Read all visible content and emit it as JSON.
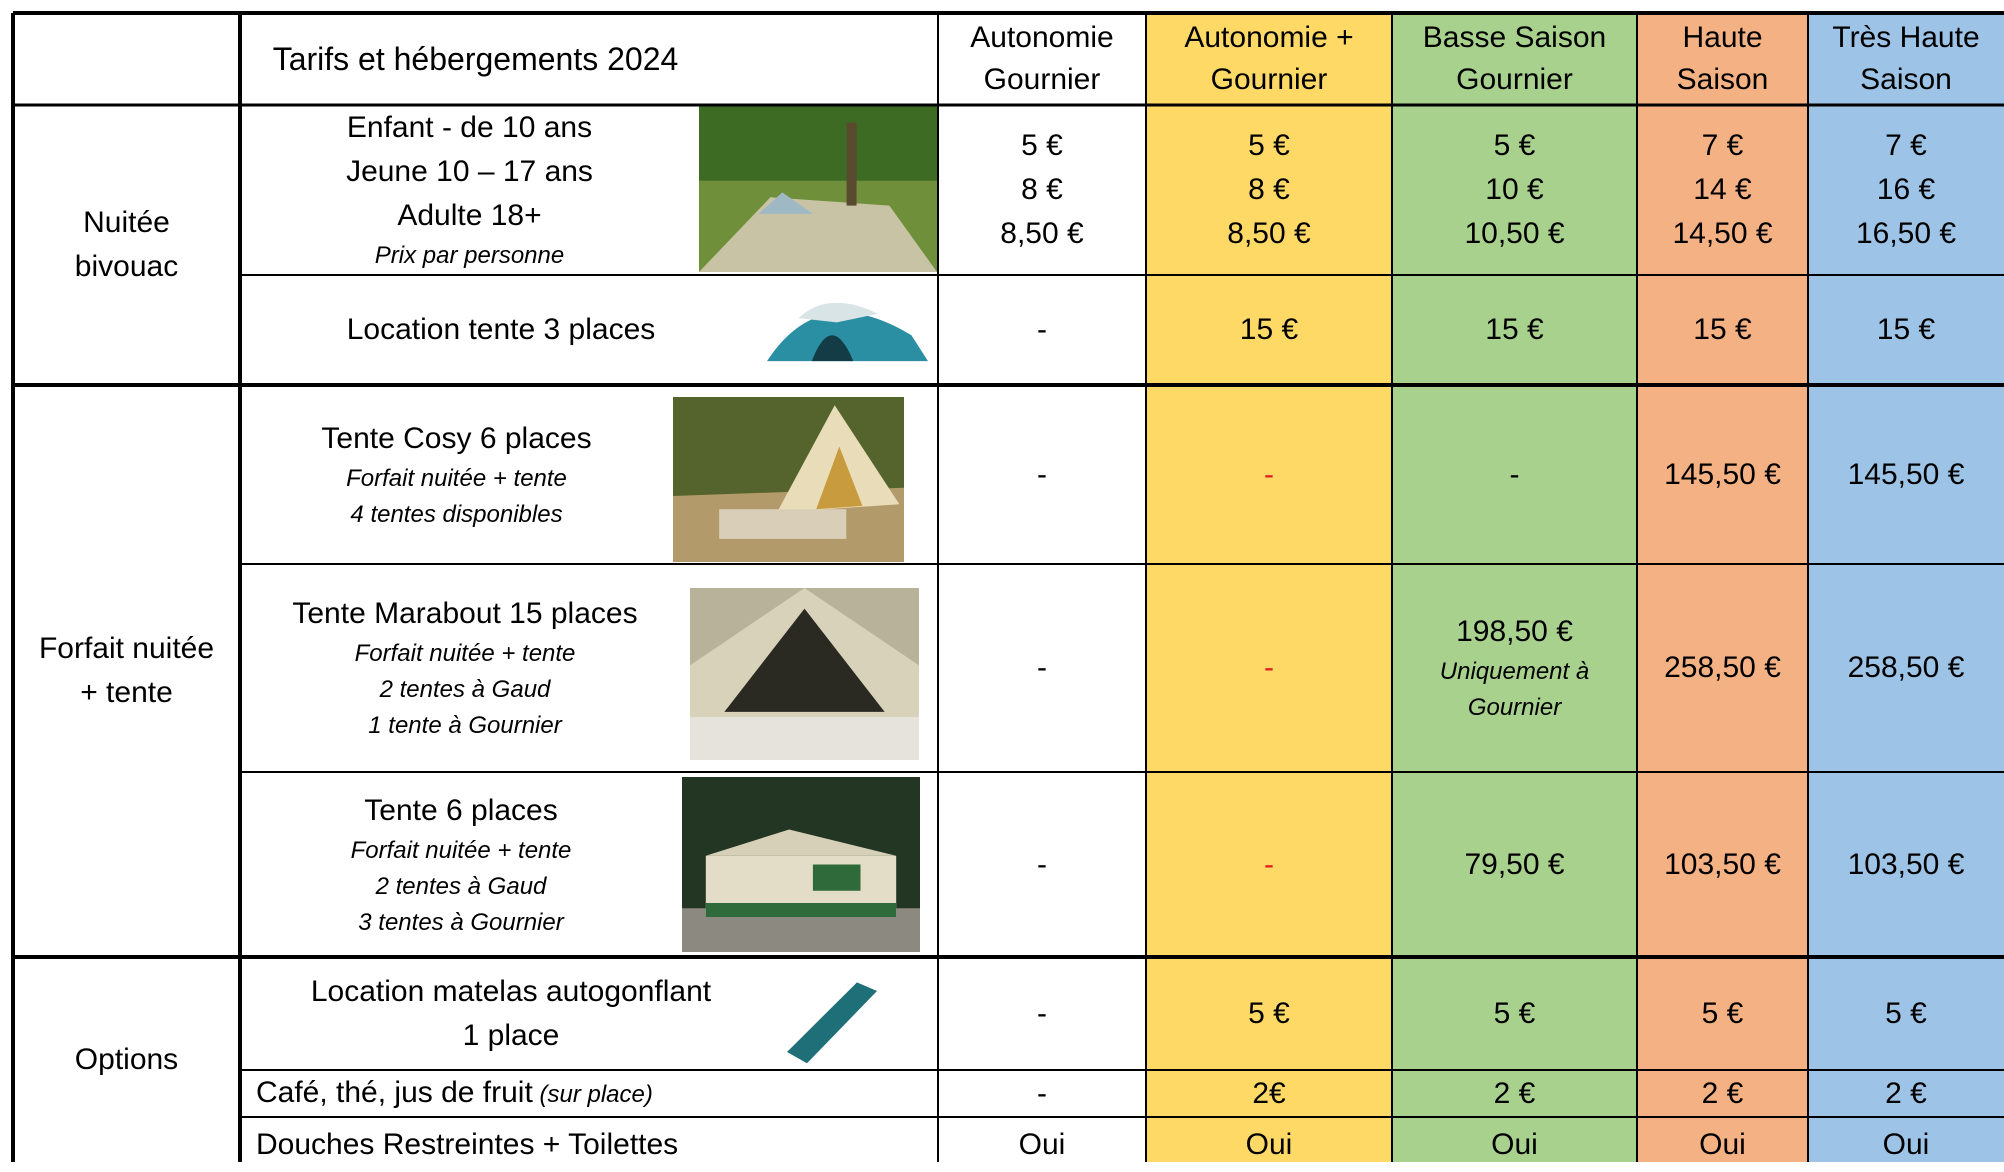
{
  "header": {
    "title": "Tarifs et hébergements 2024",
    "columns": [
      [
        "Autonomie",
        "Gournier"
      ],
      [
        "Autonomie +",
        "Gournier"
      ],
      [
        "Basse Saison",
        "Gournier"
      ],
      [
        "Haute",
        "Saison"
      ],
      [
        "Très Haute",
        "Saison"
      ]
    ],
    "column_colors": [
      "#ffffff",
      "#ffd966",
      "#a9d18e",
      "#f4b183",
      "#9dc3e6"
    ]
  },
  "sections": [
    {
      "label": [
        "Nuitée",
        "bivouac"
      ],
      "rows": [
        {
          "description": [
            "Enfant - de 10 ans",
            "Jeune 10 – 17 ans",
            "Adulte 18+"
          ],
          "notes": [
            "Prix par personne"
          ],
          "cells": [
            [
              "5 €",
              "8 €",
              "8,50 €"
            ],
            [
              "5 €",
              "8 €",
              "8,50 €"
            ],
            [
              "5 €",
              "10 €",
              "10,50 €"
            ],
            [
              "7 €",
              "14 €",
              "14,50 €"
            ],
            [
              "7 €",
              "16 €",
              "16,50 €"
            ]
          ]
        },
        {
          "description": [
            "Location tente 3 places"
          ],
          "cells": [
            [
              "-"
            ],
            [
              "15 €"
            ],
            [
              "15 €"
            ],
            [
              "15 €"
            ],
            [
              "15 €"
            ]
          ]
        }
      ]
    },
    {
      "label": [
        "Forfait nuitée",
        "+ tente"
      ],
      "rows": [
        {
          "description": [
            "Tente Cosy 6 places"
          ],
          "notes": [
            "Forfait nuitée + tente",
            "4 tentes disponibles"
          ],
          "cells": [
            [
              "-"
            ],
            [
              "-"
            ],
            [
              "-"
            ],
            [
              "145,50 €"
            ],
            [
              "145,50 €"
            ]
          ],
          "text_colors": [
            "#000000",
            "#e02020",
            "#000000",
            "#000000",
            "#000000"
          ]
        },
        {
          "description": [
            "Tente Marabout 15 places"
          ],
          "notes": [
            "Forfait nuitée + tente",
            "2 tentes à Gaud",
            "1 tente à Gournier"
          ],
          "cells": [
            [
              "-"
            ],
            [
              "-"
            ],
            [
              "198,50 €"
            ],
            [
              "258,50 €"
            ],
            [
              "258,50 €"
            ]
          ],
          "cell_notes": [
            [],
            [],
            [
              "Uniquement à",
              "Gournier"
            ],
            [],
            []
          ],
          "text_colors": [
            "#000000",
            "#e02020",
            "#000000",
            "#000000",
            "#000000"
          ]
        },
        {
          "description": [
            "Tente 6 places"
          ],
          "notes": [
            "Forfait nuitée + tente",
            "2 tentes à Gaud",
            "3 tentes à Gournier"
          ],
          "cells": [
            [
              "-"
            ],
            [
              "-"
            ],
            [
              "79,50 €"
            ],
            [
              "103,50 €"
            ],
            [
              "103,50 €"
            ]
          ],
          "text_colors": [
            "#000000",
            "#e02020",
            "#000000",
            "#000000",
            "#000000"
          ]
        }
      ]
    },
    {
      "label": [
        "Options"
      ],
      "rows": [
        {
          "description": [
            "Location matelas autogonflant",
            "1 place"
          ],
          "cells": [
            [
              "-"
            ],
            [
              "5 €"
            ],
            [
              "5 €"
            ],
            [
              "5 €"
            ],
            [
              "5 €"
            ]
          ]
        },
        {
          "description": [
            "Café, thé, jus de fruit"
          ],
          "inline_note": "(sur place)",
          "cells": [
            [
              "-"
            ],
            [
              "2€"
            ],
            [
              "2 €"
            ],
            [
              "2 €"
            ],
            [
              "2 €"
            ]
          ]
        },
        {
          "description": [
            "Douches Restreintes + Toilettes"
          ],
          "cells": [
            [
              "Oui"
            ],
            [
              "Oui"
            ],
            [
              "Oui"
            ],
            [
              "Oui"
            ],
            [
              "Oui"
            ]
          ]
        }
      ]
    }
  ]
}
